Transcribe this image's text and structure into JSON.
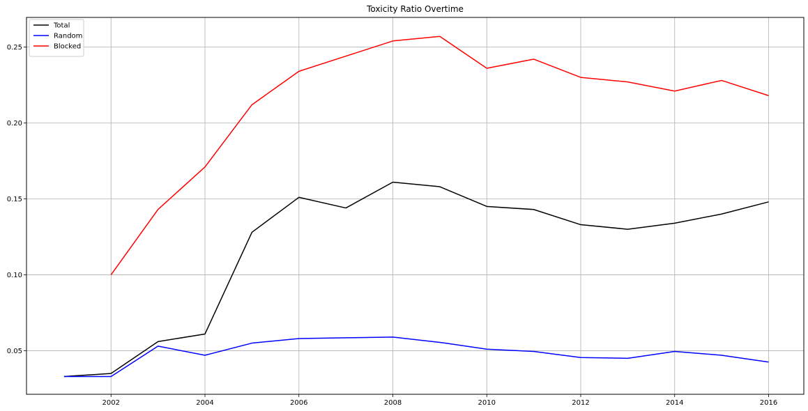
{
  "chart_data": {
    "type": "line",
    "title": "Toxicity Ratio Overtime",
    "xlabel": "",
    "ylabel": "",
    "xlim": [
      2000.2,
      2016.75
    ],
    "ylim": [
      0.0213,
      0.2695
    ],
    "x_ticks": [
      2002,
      2004,
      2006,
      2008,
      2010,
      2012,
      2014,
      2016
    ],
    "y_ticks": [
      0.05,
      0.1,
      0.15,
      0.2,
      0.25
    ],
    "x_tick_labels": [
      "2002",
      "2004",
      "2006",
      "2008",
      "2010",
      "2012",
      "2014",
      "2016"
    ],
    "y_tick_labels": [
      "0.05",
      "0.10",
      "0.15",
      "0.20",
      "0.25"
    ],
    "grid": true,
    "legend_position": "top-left",
    "series": [
      {
        "name": "Total",
        "color": "#000000",
        "x": [
          2001,
          2002,
          2003,
          2004,
          2005,
          2006,
          2007,
          2008,
          2009,
          2010,
          2011,
          2012,
          2013,
          2014,
          2015,
          2016
        ],
        "values": [
          0.033,
          0.035,
          0.056,
          0.061,
          0.128,
          0.151,
          0.144,
          0.161,
          0.158,
          0.145,
          0.143,
          0.133,
          0.13,
          0.134,
          0.14,
          0.148
        ]
      },
      {
        "name": "Random",
        "color": "#0000ff",
        "x": [
          2001,
          2002,
          2003,
          2004,
          2005,
          2006,
          2007,
          2008,
          2009,
          2010,
          2011,
          2012,
          2013,
          2014,
          2015,
          2016
        ],
        "values": [
          0.033,
          0.033,
          0.053,
          0.047,
          0.055,
          0.058,
          0.0585,
          0.059,
          0.0555,
          0.051,
          0.0495,
          0.0455,
          0.045,
          0.0495,
          0.047,
          0.0425
        ]
      },
      {
        "name": "Blocked",
        "color": "#ff0000",
        "x": [
          2002,
          2003,
          2004,
          2005,
          2006,
          2007,
          2008,
          2009,
          2010,
          2011,
          2012,
          2013,
          2014,
          2015,
          2016
        ],
        "values": [
          0.1,
          0.143,
          0.171,
          0.212,
          0.234,
          0.244,
          0.254,
          0.257,
          0.236,
          0.242,
          0.23,
          0.227,
          0.221,
          0.228,
          0.218
        ]
      }
    ]
  }
}
